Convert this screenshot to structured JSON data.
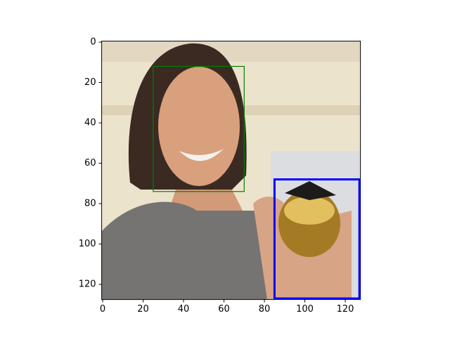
{
  "chart_data": {
    "type": "image",
    "xlim": [
      -0.5,
      127.5
    ],
    "ylim": [
      127.5,
      -0.5
    ],
    "xticks": [
      0,
      20,
      40,
      60,
      80,
      100,
      120
    ],
    "yticks": [
      0,
      20,
      40,
      60,
      80,
      100,
      120
    ],
    "boxes": [
      {
        "color": "#008000",
        "x0": 25,
        "y0": 12,
        "x1": 70,
        "y1": 74
      },
      {
        "color": "#0000ff",
        "x0": 85,
        "y0": 68,
        "x1": 127,
        "y1": 127
      }
    ]
  }
}
